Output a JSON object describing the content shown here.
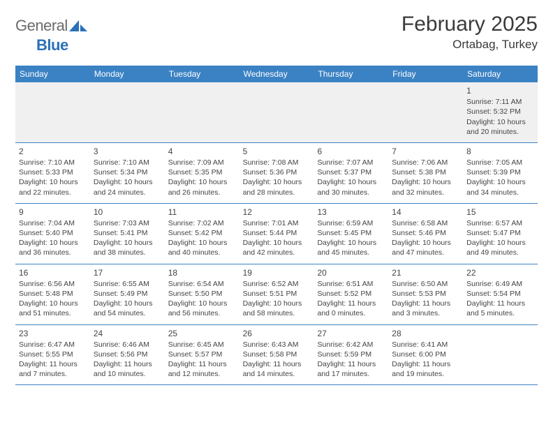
{
  "brand": {
    "part1": "General",
    "part2": "Blue"
  },
  "title": "February 2025",
  "location": "Ortabag, Turkey",
  "colors": {
    "header_bar": "#3b82c4",
    "header_text": "#ffffff",
    "empty_row_bg": "#f0f0f0",
    "divider": "#3b82c4",
    "text": "#3a3a3a",
    "logo_gray": "#6b6b6b",
    "logo_blue": "#2a71b8"
  },
  "day_headers": [
    "Sunday",
    "Monday",
    "Tuesday",
    "Wednesday",
    "Thursday",
    "Friday",
    "Saturday"
  ],
  "label_sunrise": "Sunrise: ",
  "label_sunset": "Sunset: ",
  "label_daylight": "Daylight: ",
  "weeks": [
    [
      {
        "n": "",
        "empty": true
      },
      {
        "n": "",
        "empty": true
      },
      {
        "n": "",
        "empty": true
      },
      {
        "n": "",
        "empty": true
      },
      {
        "n": "",
        "empty": true
      },
      {
        "n": "",
        "empty": true
      },
      {
        "n": "1",
        "sunrise": "7:11 AM",
        "sunset": "5:32 PM",
        "daylight": "10 hours and 20 minutes."
      }
    ],
    [
      {
        "n": "2",
        "sunrise": "7:10 AM",
        "sunset": "5:33 PM",
        "daylight": "10 hours and 22 minutes."
      },
      {
        "n": "3",
        "sunrise": "7:10 AM",
        "sunset": "5:34 PM",
        "daylight": "10 hours and 24 minutes."
      },
      {
        "n": "4",
        "sunrise": "7:09 AM",
        "sunset": "5:35 PM",
        "daylight": "10 hours and 26 minutes."
      },
      {
        "n": "5",
        "sunrise": "7:08 AM",
        "sunset": "5:36 PM",
        "daylight": "10 hours and 28 minutes."
      },
      {
        "n": "6",
        "sunrise": "7:07 AM",
        "sunset": "5:37 PM",
        "daylight": "10 hours and 30 minutes."
      },
      {
        "n": "7",
        "sunrise": "7:06 AM",
        "sunset": "5:38 PM",
        "daylight": "10 hours and 32 minutes."
      },
      {
        "n": "8",
        "sunrise": "7:05 AM",
        "sunset": "5:39 PM",
        "daylight": "10 hours and 34 minutes."
      }
    ],
    [
      {
        "n": "9",
        "sunrise": "7:04 AM",
        "sunset": "5:40 PM",
        "daylight": "10 hours and 36 minutes."
      },
      {
        "n": "10",
        "sunrise": "7:03 AM",
        "sunset": "5:41 PM",
        "daylight": "10 hours and 38 minutes."
      },
      {
        "n": "11",
        "sunrise": "7:02 AM",
        "sunset": "5:42 PM",
        "daylight": "10 hours and 40 minutes."
      },
      {
        "n": "12",
        "sunrise": "7:01 AM",
        "sunset": "5:44 PM",
        "daylight": "10 hours and 42 minutes."
      },
      {
        "n": "13",
        "sunrise": "6:59 AM",
        "sunset": "5:45 PM",
        "daylight": "10 hours and 45 minutes."
      },
      {
        "n": "14",
        "sunrise": "6:58 AM",
        "sunset": "5:46 PM",
        "daylight": "10 hours and 47 minutes."
      },
      {
        "n": "15",
        "sunrise": "6:57 AM",
        "sunset": "5:47 PM",
        "daylight": "10 hours and 49 minutes."
      }
    ],
    [
      {
        "n": "16",
        "sunrise": "6:56 AM",
        "sunset": "5:48 PM",
        "daylight": "10 hours and 51 minutes."
      },
      {
        "n": "17",
        "sunrise": "6:55 AM",
        "sunset": "5:49 PM",
        "daylight": "10 hours and 54 minutes."
      },
      {
        "n": "18",
        "sunrise": "6:54 AM",
        "sunset": "5:50 PM",
        "daylight": "10 hours and 56 minutes."
      },
      {
        "n": "19",
        "sunrise": "6:52 AM",
        "sunset": "5:51 PM",
        "daylight": "10 hours and 58 minutes."
      },
      {
        "n": "20",
        "sunrise": "6:51 AM",
        "sunset": "5:52 PM",
        "daylight": "11 hours and 0 minutes."
      },
      {
        "n": "21",
        "sunrise": "6:50 AM",
        "sunset": "5:53 PM",
        "daylight": "11 hours and 3 minutes."
      },
      {
        "n": "22",
        "sunrise": "6:49 AM",
        "sunset": "5:54 PM",
        "daylight": "11 hours and 5 minutes."
      }
    ],
    [
      {
        "n": "23",
        "sunrise": "6:47 AM",
        "sunset": "5:55 PM",
        "daylight": "11 hours and 7 minutes."
      },
      {
        "n": "24",
        "sunrise": "6:46 AM",
        "sunset": "5:56 PM",
        "daylight": "11 hours and 10 minutes."
      },
      {
        "n": "25",
        "sunrise": "6:45 AM",
        "sunset": "5:57 PM",
        "daylight": "11 hours and 12 minutes."
      },
      {
        "n": "26",
        "sunrise": "6:43 AM",
        "sunset": "5:58 PM",
        "daylight": "11 hours and 14 minutes."
      },
      {
        "n": "27",
        "sunrise": "6:42 AM",
        "sunset": "5:59 PM",
        "daylight": "11 hours and 17 minutes."
      },
      {
        "n": "28",
        "sunrise": "6:41 AM",
        "sunset": "6:00 PM",
        "daylight": "11 hours and 19 minutes."
      },
      {
        "n": "",
        "empty": true
      }
    ]
  ]
}
